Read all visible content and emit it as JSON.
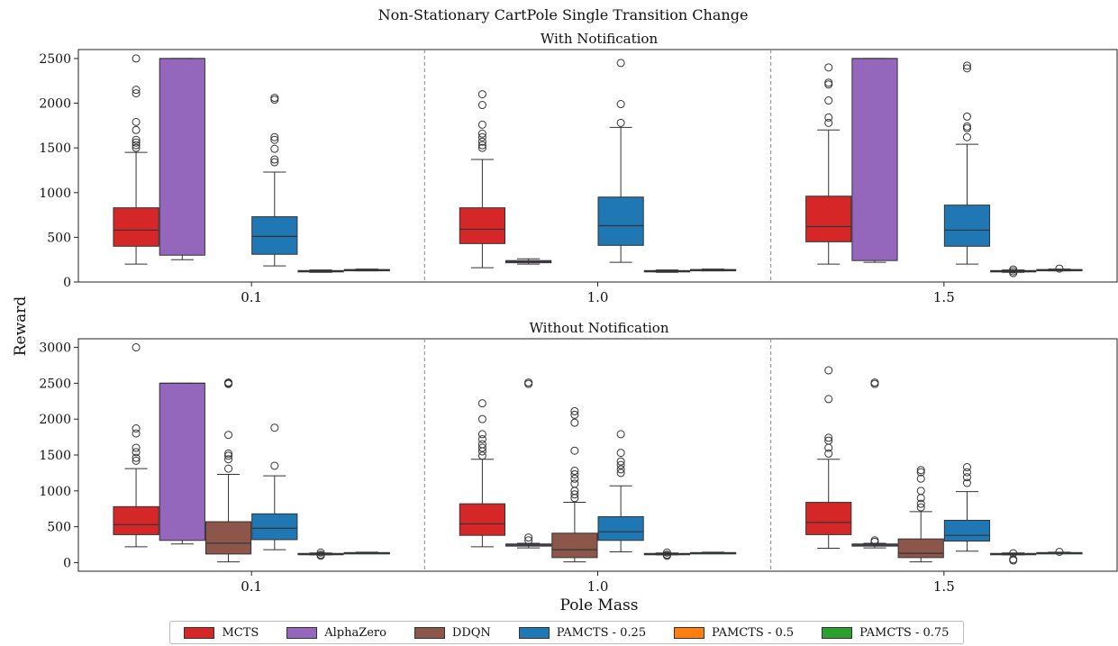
{
  "title": "Non-Stationary CartPole Single Transition Change",
  "ylabel": "Reward",
  "xlabel": "Pole Mass",
  "colors": {
    "MCTS": "#d62728",
    "AlphaZero": "#9467bd",
    "DDQN": "#8c564b",
    "PAMCTS - 0.25": "#1f77b4",
    "PAMCTS - 0.5": "#ff7f0e",
    "PAMCTS - 0.75": "#2ca02c"
  },
  "legend": [
    {
      "label": "MCTS",
      "color": "#d62728"
    },
    {
      "label": "AlphaZero",
      "color": "#9467bd"
    },
    {
      "label": "DDQN",
      "color": "#8c564b"
    },
    {
      "label": "PAMCTS - 0.25",
      "color": "#1f77b4"
    },
    {
      "label": "PAMCTS - 0.5",
      "color": "#ff7f0e"
    },
    {
      "label": "PAMCTS - 0.75",
      "color": "#2ca02c"
    }
  ],
  "chart_data": [
    {
      "type": "box",
      "subtitle": "With Notification",
      "categories": [
        "0.1",
        "1.0",
        "1.5"
      ],
      "ylim": [
        0,
        2600
      ],
      "yticks": [
        0,
        500,
        1000,
        1500,
        2000,
        2500
      ],
      "groups": [
        [
          {
            "series": "MCTS",
            "q1": 400,
            "median": 580,
            "q3": 830,
            "whislo": 200,
            "whishi": 1450,
            "fliers": [
              1500,
              1530,
              1560,
              1590,
              1700,
              1790,
              2110,
              2150,
              2500
            ]
          },
          {
            "series": "AlphaZero",
            "q1": 300,
            "median": 2500,
            "q3": 2500,
            "whislo": 250,
            "whishi": 2500,
            "fliers": []
          },
          {
            "series": "DDQN",
            "absent": true
          },
          {
            "series": "PAMCTS - 0.25",
            "q1": 310,
            "median": 510,
            "q3": 730,
            "whislo": 180,
            "whishi": 1230,
            "fliers": [
              1340,
              1370,
              1490,
              1590,
              1620,
              2040,
              2060
            ]
          },
          {
            "series": "PAMCTS - 0.5",
            "q1": 115,
            "median": 122,
            "q3": 128,
            "whislo": 108,
            "whishi": 135,
            "fliers": []
          },
          {
            "series": "PAMCTS - 0.75",
            "q1": 130,
            "median": 135,
            "q3": 140,
            "whislo": 125,
            "whishi": 145,
            "fliers": []
          }
        ],
        [
          {
            "series": "MCTS",
            "q1": 430,
            "median": 590,
            "q3": 830,
            "whislo": 160,
            "whishi": 1370,
            "fliers": [
              1500,
              1530,
              1570,
              1620,
              1660,
              1760,
              1980,
              2100
            ]
          },
          {
            "series": "AlphaZero",
            "q1": 215,
            "median": 228,
            "q3": 240,
            "whislo": 200,
            "whishi": 260,
            "fliers": []
          },
          {
            "series": "DDQN",
            "absent": true
          },
          {
            "series": "PAMCTS - 0.25",
            "q1": 410,
            "median": 630,
            "q3": 950,
            "whislo": 220,
            "whishi": 1730,
            "fliers": [
              1780,
              1990,
              2450
            ]
          },
          {
            "series": "PAMCTS - 0.5",
            "q1": 115,
            "median": 122,
            "q3": 128,
            "whislo": 108,
            "whishi": 135,
            "fliers": []
          },
          {
            "series": "PAMCTS - 0.75",
            "q1": 130,
            "median": 135,
            "q3": 140,
            "whislo": 125,
            "whishi": 145,
            "fliers": []
          }
        ],
        [
          {
            "series": "MCTS",
            "q1": 450,
            "median": 620,
            "q3": 960,
            "whislo": 200,
            "whishi": 1700,
            "fliers": [
              1780,
              1840,
              2030,
              2210,
              2230,
              2400
            ]
          },
          {
            "series": "AlphaZero",
            "q1": 240,
            "median": 2500,
            "q3": 2500,
            "whislo": 220,
            "whishi": 2500,
            "fliers": []
          },
          {
            "series": "DDQN",
            "absent": true
          },
          {
            "series": "PAMCTS - 0.25",
            "q1": 400,
            "median": 580,
            "q3": 860,
            "whislo": 200,
            "whishi": 1540,
            "fliers": [
              1620,
              1720,
              1740,
              1850,
              2390,
              2420
            ]
          },
          {
            "series": "PAMCTS - 0.5",
            "q1": 115,
            "median": 122,
            "q3": 128,
            "whislo": 108,
            "whishi": 135,
            "fliers": [
              100,
              120,
              140
            ]
          },
          {
            "series": "PAMCTS - 0.75",
            "q1": 130,
            "median": 135,
            "q3": 140,
            "whislo": 125,
            "whishi": 145,
            "fliers": [
              150
            ]
          }
        ]
      ]
    },
    {
      "type": "box",
      "subtitle": "Without Notification",
      "categories": [
        "0.1",
        "1.0",
        "1.5"
      ],
      "ylim": [
        -120,
        3120
      ],
      "yticks": [
        0,
        500,
        1000,
        1500,
        2000,
        2500,
        3000
      ],
      "groups": [
        [
          {
            "series": "MCTS",
            "q1": 390,
            "median": 530,
            "q3": 780,
            "whislo": 220,
            "whishi": 1310,
            "fliers": [
              1420,
              1460,
              1540,
              1600,
              1800,
              1870,
              3000
            ]
          },
          {
            "series": "AlphaZero",
            "q1": 310,
            "median": 2500,
            "q3": 2500,
            "whislo": 260,
            "whishi": 2500,
            "fliers": []
          },
          {
            "series": "DDQN",
            "q1": 120,
            "median": 270,
            "q3": 570,
            "whislo": 10,
            "whishi": 1230,
            "fliers": [
              1310,
              1440,
              1490,
              1520,
              1780,
              2490,
              2500,
              2510
            ]
          },
          {
            "series": "PAMCTS - 0.25",
            "q1": 320,
            "median": 480,
            "q3": 680,
            "whislo": 180,
            "whishi": 1210,
            "fliers": [
              1350,
              1880
            ]
          },
          {
            "series": "PAMCTS - 0.5",
            "q1": 115,
            "median": 122,
            "q3": 128,
            "whislo": 108,
            "whishi": 135,
            "fliers": [
              95,
              110,
              140
            ]
          },
          {
            "series": "PAMCTS - 0.75",
            "q1": 130,
            "median": 135,
            "q3": 140,
            "whislo": 125,
            "whishi": 145,
            "fliers": []
          }
        ],
        [
          {
            "series": "MCTS",
            "q1": 380,
            "median": 540,
            "q3": 820,
            "whislo": 220,
            "whishi": 1440,
            "fliers": [
              1490,
              1550,
              1600,
              1650,
              1720,
              1790,
              2000,
              2220
            ]
          },
          {
            "series": "AlphaZero",
            "q1": 230,
            "median": 245,
            "q3": 260,
            "whislo": 205,
            "whishi": 270,
            "fliers": [
              310,
              350,
              2490,
              2510
            ]
          },
          {
            "series": "DDQN",
            "q1": 70,
            "median": 180,
            "q3": 410,
            "whislo": 10,
            "whishi": 840,
            "fliers": [
              900,
              950,
              1000,
              1100,
              1170,
              1230,
              1280,
              1560,
              1950,
              2060,
              2110
            ]
          },
          {
            "series": "PAMCTS - 0.25",
            "q1": 310,
            "median": 430,
            "q3": 640,
            "whislo": 150,
            "whishi": 1070,
            "fliers": [
              1250,
              1300,
              1360,
              1410,
              1530,
              1790
            ]
          },
          {
            "series": "PAMCTS - 0.5",
            "q1": 115,
            "median": 122,
            "q3": 128,
            "whislo": 108,
            "whishi": 135,
            "fliers": [
              95,
              110,
              140
            ]
          },
          {
            "series": "PAMCTS - 0.75",
            "q1": 130,
            "median": 135,
            "q3": 140,
            "whislo": 125,
            "whishi": 145,
            "fliers": []
          }
        ],
        [
          {
            "series": "MCTS",
            "q1": 390,
            "median": 560,
            "q3": 840,
            "whislo": 200,
            "whishi": 1440,
            "fliers": [
              1520,
              1600,
              1700,
              1740,
              2280,
              2680
            ]
          },
          {
            "series": "AlphaZero",
            "q1": 230,
            "median": 245,
            "q3": 260,
            "whislo": 205,
            "whishi": 270,
            "fliers": [
              290,
              310,
              2490,
              2510
            ]
          },
          {
            "series": "DDQN",
            "q1": 70,
            "median": 130,
            "q3": 330,
            "whislo": 10,
            "whishi": 710,
            "fliers": [
              770,
              820,
              900,
              1000,
              1170,
              1260,
              1290
            ]
          },
          {
            "series": "PAMCTS - 0.25",
            "q1": 300,
            "median": 380,
            "q3": 590,
            "whislo": 160,
            "whishi": 990,
            "fliers": [
              1110,
              1190,
              1260,
              1330
            ]
          },
          {
            "series": "PAMCTS - 0.5",
            "q1": 115,
            "median": 122,
            "q3": 128,
            "whislo": 108,
            "whishi": 135,
            "fliers": [
              30,
              45,
              130
            ]
          },
          {
            "series": "PAMCTS - 0.75",
            "q1": 130,
            "median": 135,
            "q3": 140,
            "whislo": 125,
            "whishi": 145,
            "fliers": [
              150
            ]
          }
        ]
      ]
    }
  ]
}
